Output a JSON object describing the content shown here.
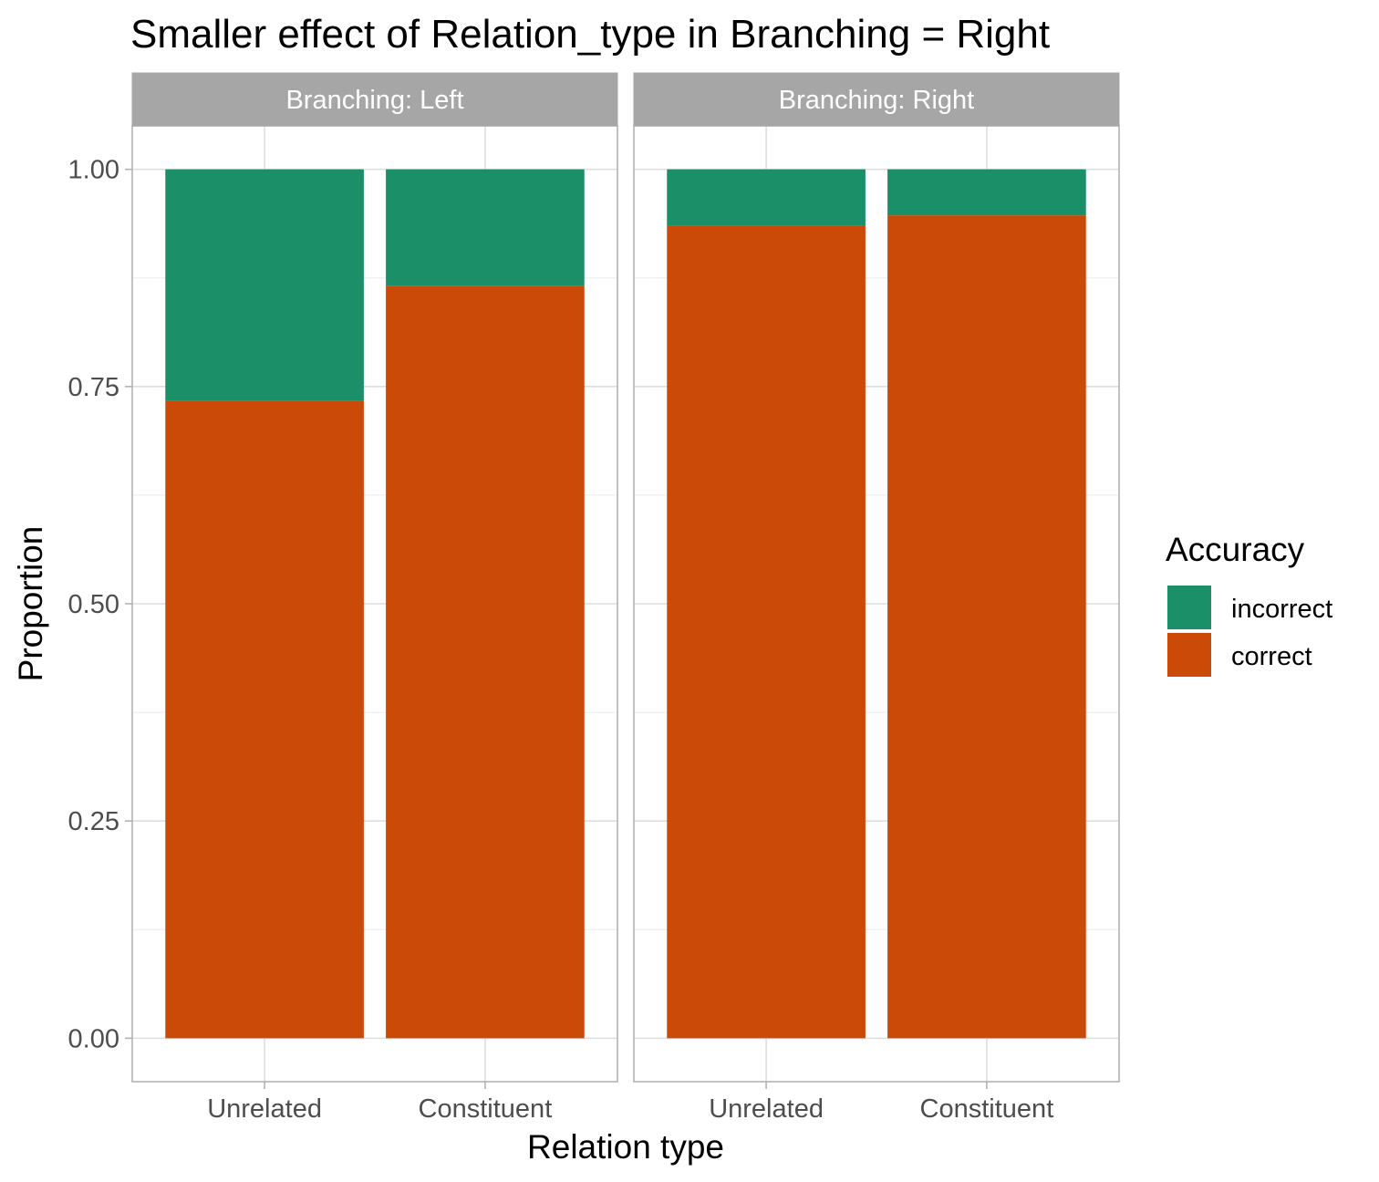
{
  "chart_data": {
    "type": "bar",
    "stacked": true,
    "title": "Smaller effect of Relation_type in Branching = Right",
    "xlabel": "Relation type",
    "ylabel": "Proportion",
    "ylim": [
      -0.05,
      1.05
    ],
    "yticks": [
      0,
      0.25,
      0.5,
      0.75,
      1
    ],
    "ytick_labels": [
      "0.00",
      "0.25",
      "0.50",
      "0.75",
      "1.00"
    ],
    "grid": true,
    "categories": [
      "Unrelated",
      "Constituent"
    ],
    "facets": [
      {
        "label": "Branching: Left",
        "series": [
          {
            "name": "correct",
            "values": [
              0.734,
              0.866
            ]
          },
          {
            "name": "incorrect",
            "values": [
              0.266,
              0.134
            ]
          }
        ]
      },
      {
        "label": "Branching: Right",
        "series": [
          {
            "name": "correct",
            "values": [
              0.935,
              0.947
            ]
          },
          {
            "name": "incorrect",
            "values": [
              0.065,
              0.053
            ]
          }
        ]
      }
    ],
    "legend": {
      "title": "Accuracy",
      "position": "right",
      "entries": [
        {
          "name": "incorrect",
          "color": "#1B9068"
        },
        {
          "name": "correct",
          "color": "#CC4A08"
        }
      ]
    },
    "colors": {
      "correct": "#CC4A08",
      "incorrect": "#1B9068"
    }
  }
}
